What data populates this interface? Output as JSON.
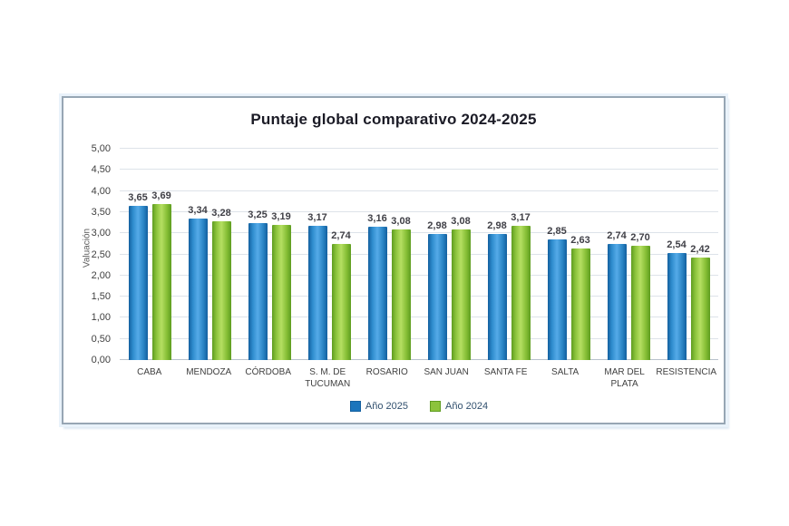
{
  "chart_data": {
    "type": "bar",
    "title": "Puntaje global comparativo 2024-2025",
    "xlabel": "",
    "ylabel": "Valuación",
    "ylim": [
      0,
      5
    ],
    "ytick_step": 0.5,
    "ytick_labels": [
      "0,00",
      "0,50",
      "1,00",
      "1,50",
      "2,00",
      "2,50",
      "3,00",
      "3,50",
      "4,00",
      "4,50",
      "5,00"
    ],
    "grid": true,
    "legend_position": "bottom",
    "categories": [
      "CABA",
      "MENDOZA",
      "CÓRDOBA",
      "S. M. DE TUCUMAN",
      "ROSARIO",
      "SAN JUAN",
      "SANTA FE",
      "SALTA",
      "MAR DEL PLATA",
      "RESISTENCIA"
    ],
    "series": [
      {
        "name": "Año 2025",
        "color": "#1b75bc",
        "values": [
          3.65,
          3.34,
          3.25,
          3.17,
          3.16,
          2.98,
          2.98,
          2.85,
          2.74,
          2.54
        ],
        "value_labels": [
          "3,65",
          "3,34",
          "3,25",
          "3,17",
          "3,16",
          "2,98",
          "2,98",
          "2,85",
          "2,74",
          "2,54"
        ]
      },
      {
        "name": "Año 2024",
        "color": "#8cc33c",
        "values": [
          3.69,
          3.28,
          3.19,
          2.74,
          3.08,
          3.08,
          3.17,
          2.63,
          2.7,
          2.42
        ],
        "value_labels": [
          "3,69",
          "3,28",
          "3,19",
          "2,74",
          "3,08",
          "3,08",
          "3,17",
          "2,63",
          "2,70",
          "2,42"
        ]
      }
    ]
  }
}
